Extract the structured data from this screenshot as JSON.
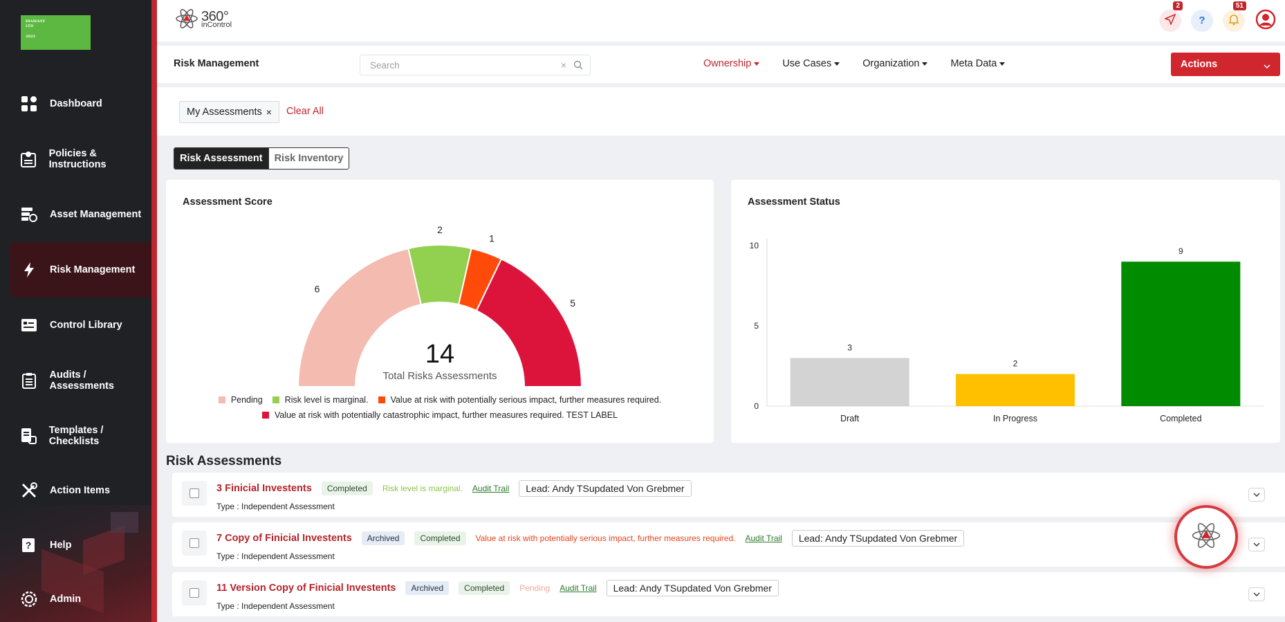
{
  "company_logo": {
    "line1": "DIAMANT",
    "line2": "LTD",
    "line3": "2023"
  },
  "sidebar": {
    "items": [
      {
        "label": "Dashboard",
        "icon": "dashboard-icon"
      },
      {
        "label": "Policies & Instructions",
        "icon": "policy-icon"
      },
      {
        "label": "Asset Management",
        "icon": "asset-icon"
      },
      {
        "label": "Risk Management",
        "icon": "bolt-icon",
        "active": true
      },
      {
        "label": "Control Library",
        "icon": "control-library-icon"
      },
      {
        "label": "Audits / Assessments",
        "icon": "clipboard-icon"
      },
      {
        "label": "Templates / Checklists",
        "icon": "template-icon"
      },
      {
        "label": "Action Items",
        "icon": "tools-icon"
      },
      {
        "label": "Help",
        "icon": "help-icon"
      },
      {
        "label": "Admin",
        "icon": "admin-gear-icon"
      }
    ]
  },
  "brand": {
    "name": "360°",
    "sub": "inControl"
  },
  "topbar": {
    "notifications": [
      {
        "icon": "send-icon",
        "badge": "2",
        "color": "#fde8e8"
      },
      {
        "icon": "question-icon",
        "badge": "",
        "color": "#e6effb"
      },
      {
        "icon": "bell-icon",
        "badge": "51",
        "color": "#fdf2e0"
      },
      {
        "icon": "user-avatar-icon",
        "badge": "",
        "color": "#ffffff"
      }
    ]
  },
  "subheader": {
    "title": "Risk Management",
    "search_placeholder": "Search",
    "menus": [
      {
        "label": "Ownership",
        "active": true
      },
      {
        "label": "Use Cases"
      },
      {
        "label": "Organization"
      },
      {
        "label": "Meta Data"
      }
    ],
    "actions_label": "Actions"
  },
  "filters": {
    "chip_label": "My Assessments",
    "clear_all": "Clear All"
  },
  "toggle": {
    "on": "Risk Assessment",
    "off": "Risk Inventory"
  },
  "colors": {
    "brand_red": "#c0272d",
    "pending": "#f4bcb0",
    "marginal": "#92d050",
    "serious": "#ff4b0a",
    "catastrophic": "#dc143c",
    "draft": "#d3d3d3",
    "in_progress": "#ffc000",
    "completed": "#008b00"
  },
  "score_card": {
    "title": "Assessment Score",
    "total": "14",
    "total_label": "Total Risks Assessments",
    "legend": [
      {
        "label": "Pending",
        "color": "#f4bcb0"
      },
      {
        "label": "Risk level is marginal.",
        "color": "#92d050"
      },
      {
        "label": "Value at risk with potentially serious impact, further measures required.",
        "color": "#ff4b0a"
      },
      {
        "label": "Value at risk with potentially catastrophic impact, further measures required. TEST LABEL",
        "color": "#dc143c"
      }
    ]
  },
  "status_card": {
    "title": "Assessment Status"
  },
  "chart_data": [
    {
      "type": "pie",
      "variant": "half-donut",
      "title": "Assessment Score",
      "categories": [
        "Pending",
        "Risk level is marginal.",
        "Value at risk with potentially serious impact, further measures required.",
        "Value at risk with potentially catastrophic impact, further measures required. TEST LABEL"
      ],
      "values": [
        6,
        2,
        1,
        5
      ],
      "colors": [
        "#f4bcb0",
        "#92d050",
        "#ff4b0a",
        "#dc143c"
      ],
      "center_text": "14",
      "legend": "bottom"
    },
    {
      "type": "bar",
      "title": "Assessment Status",
      "categories": [
        "Draft",
        "In Progress",
        "Completed"
      ],
      "values": [
        3,
        2,
        9
      ],
      "colors": [
        "#d3d3d3",
        "#ffc000",
        "#008b00"
      ],
      "ylim": [
        0,
        10
      ],
      "yticks": [
        0,
        5,
        10
      ],
      "grid": false
    }
  ],
  "risk_section": {
    "title": "Risk Assessments"
  },
  "risk_rows": [
    {
      "name": "3 Finicial Investents",
      "tags": [
        {
          "label": "Completed",
          "kind": "completed"
        }
      ],
      "status": "Risk level is marginal.",
      "status_color": "#8bc34a",
      "audit": "Audit Trail",
      "lead": "Lead: Andy TSupdated Von Grebmer",
      "type": "Type : Independent Assessment"
    },
    {
      "name": "7 Copy of Finicial Investents",
      "tags": [
        {
          "label": "Archived",
          "kind": "archived"
        },
        {
          "label": "Completed",
          "kind": "completed"
        }
      ],
      "status": "Value at risk with potentially serious impact, further measures required.",
      "status_color": "#e8431b",
      "audit": "Audit Trail",
      "lead": "Lead: Andy TSupdated Von Grebmer",
      "type": "Type : Independent Assessment"
    },
    {
      "name": "11 Version Copy of Finicial Investents",
      "tags": [
        {
          "label": "Archived",
          "kind": "archived"
        },
        {
          "label": "Completed",
          "kind": "completed"
        }
      ],
      "status": "Pending",
      "status_color": "#f0a99a",
      "audit": "Audit Trail",
      "lead": "Lead: Andy TSupdated Von Grebmer",
      "type": "Type : Independent Assessment"
    }
  ]
}
